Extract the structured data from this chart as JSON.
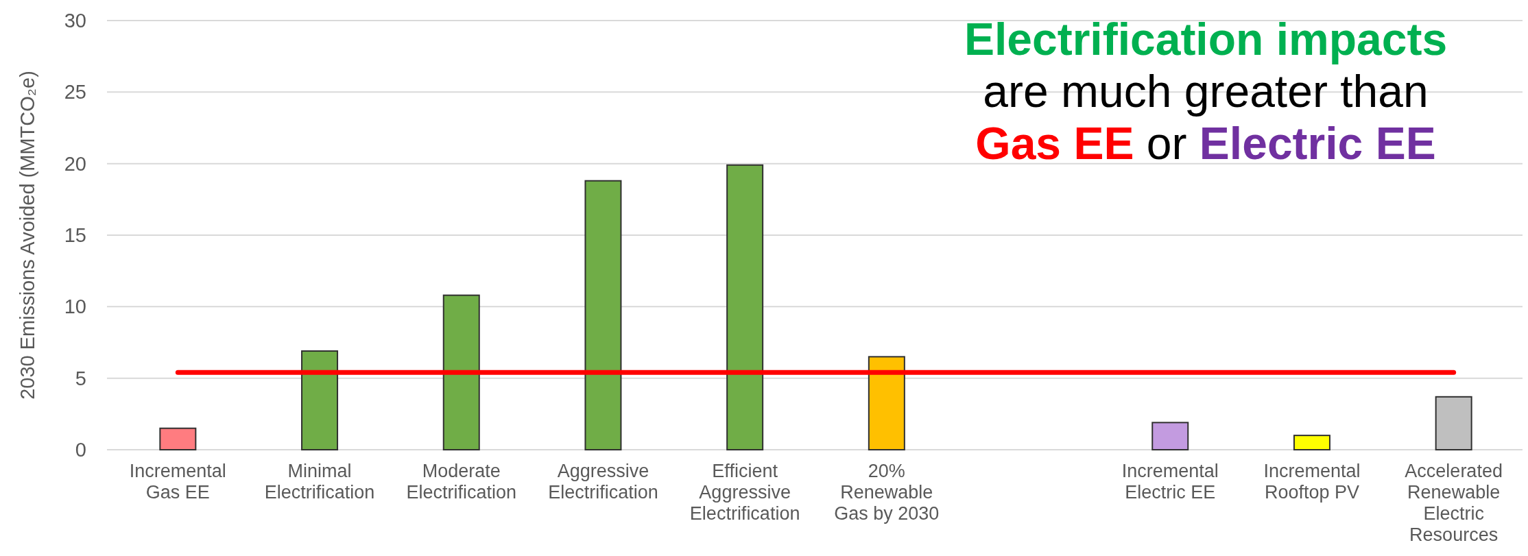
{
  "chart_data": {
    "type": "bar",
    "ylabel": "2030 Emissions Avoided (MMTCO₂e)",
    "categories": [
      "Incremental Gas EE",
      "Minimal Electrification",
      "Moderate Electrification",
      "Aggressive Electrification",
      "Efficient Aggressive Electrification",
      "20% Renewable Gas by 2030",
      null,
      "Incremental Electric EE",
      "Incremental Rooftop PV",
      "Accelerated Renewable Electric Resources"
    ],
    "values": [
      1.5,
      6.9,
      10.8,
      18.8,
      19.9,
      6.5,
      null,
      1.9,
      1.0,
      3.7
    ],
    "colors": [
      "#ff7c80",
      "#70ad47",
      "#70ad47",
      "#70ad47",
      "#70ad47",
      "#ffc000",
      null,
      "#c39be0",
      "#ffff00",
      "#bfbfbf"
    ],
    "ylim": [
      0,
      30
    ],
    "yticks": [
      0,
      5,
      10,
      15,
      20,
      25,
      30
    ],
    "grid": "y",
    "ref_lines": [
      {
        "axis": "y",
        "value": 5.4,
        "color": "#ff0000"
      }
    ],
    "annotations": [
      "Electrification impacts",
      "are much greater than",
      "Gas EE",
      "or",
      "Electric EE"
    ]
  }
}
